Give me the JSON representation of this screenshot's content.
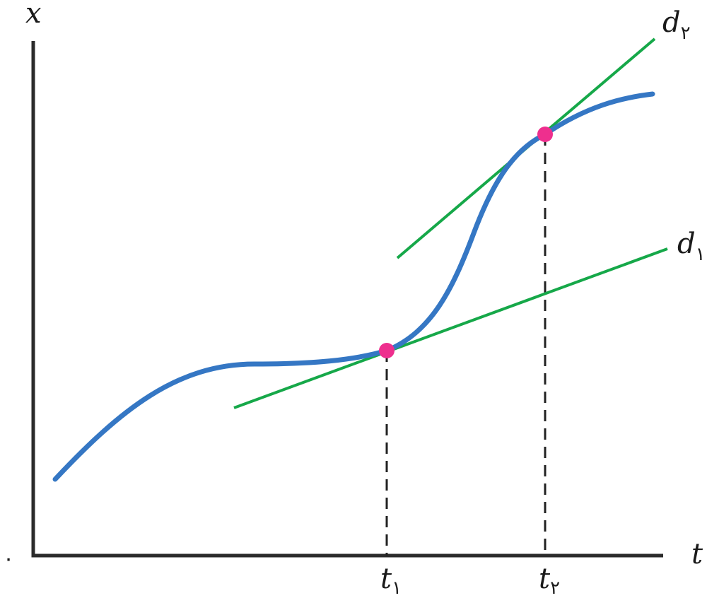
{
  "axes": {
    "y_label": "x",
    "x_label": "t",
    "origin_label": "٠"
  },
  "tangents": [
    {
      "name": "d",
      "subscript": "١"
    },
    {
      "name": "d",
      "subscript": "٢"
    }
  ],
  "ticks": [
    {
      "name": "t",
      "subscript": "١"
    },
    {
      "name": "t",
      "subscript": "٢"
    }
  ],
  "colors": {
    "curve": "#3577c4",
    "tangent": "#16a849",
    "point": "#ee2f8e",
    "axis": "#2b2b2b"
  }
}
